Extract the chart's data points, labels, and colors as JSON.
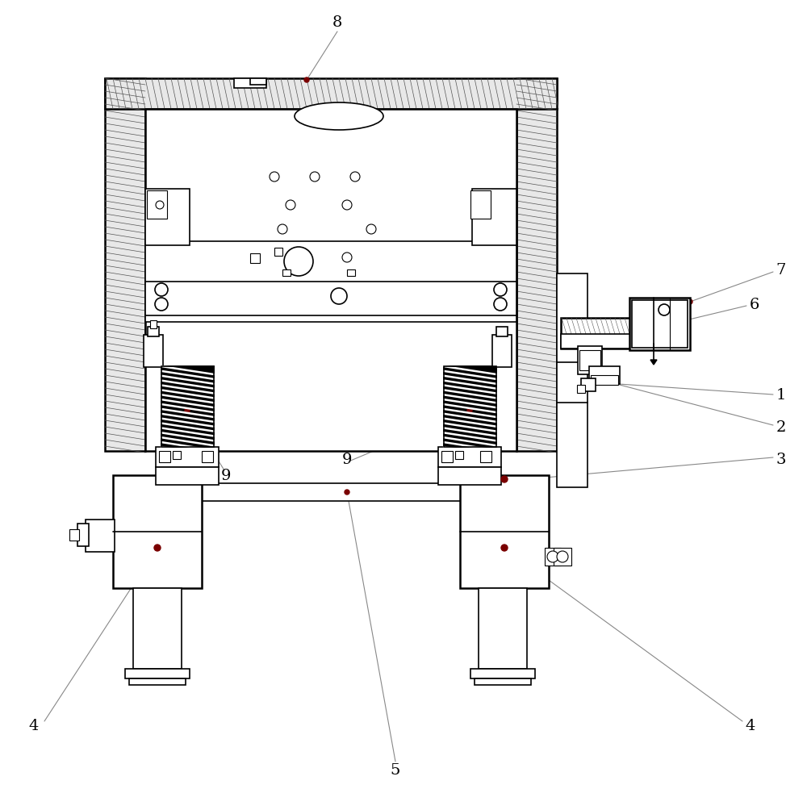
{
  "bg_color": "#ffffff",
  "line_color": "#000000",
  "annotation_color": "#000000",
  "leader_line_color": "#888888",
  "dot_color": "#7a0000",
  "figsize": [
    10.0,
    9.79
  ],
  "dpi": 100
}
